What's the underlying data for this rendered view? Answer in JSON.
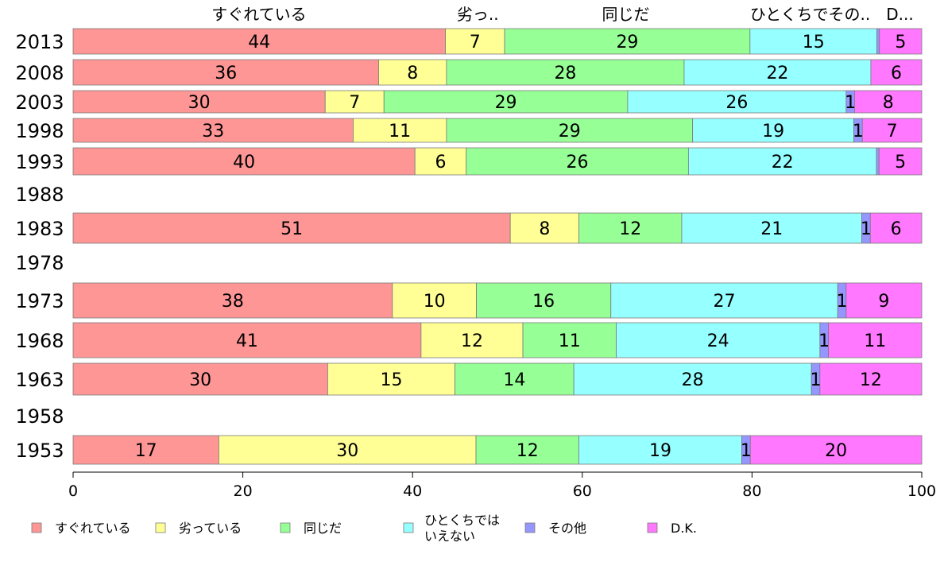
{
  "chart_data": {
    "type": "bar",
    "orientation": "horizontal",
    "stacked": true,
    "x_ticks": [
      "0",
      "20",
      "40",
      "60",
      "80",
      "100"
    ],
    "xlim": [
      0,
      100
    ],
    "top_labels": [
      "すぐれている",
      "劣っ..",
      "同じだ",
      "ひとくちでその..",
      "D..."
    ],
    "legend_position": "bottom",
    "series": [
      {
        "name": "すぐれている",
        "color": "#ff9696"
      },
      {
        "name": "劣っている",
        "color": "#ffff96"
      },
      {
        "name": "同じだ",
        "color": "#96ff96"
      },
      {
        "name": "ひとくちでは いえない",
        "color": "#96ffff"
      },
      {
        "name": "その他",
        "color": "#9696ff"
      },
      {
        "name": "D.K.",
        "color": "#ff78ff"
      }
    ],
    "rows": [
      {
        "year": "2013",
        "values": [
          44,
          7,
          29,
          15,
          0.3,
          5
        ],
        "labels": [
          "44",
          "7",
          "29",
          "15",
          "",
          "5"
        ]
      },
      {
        "year": "2008",
        "values": [
          36,
          8,
          28,
          22,
          0,
          6
        ],
        "labels": [
          "36",
          "8",
          "28",
          "22",
          "",
          "6"
        ]
      },
      {
        "year": "2003",
        "values": [
          30,
          7,
          29,
          26,
          1,
          8
        ],
        "labels": [
          "30",
          "7",
          "29",
          "26",
          "1",
          "8"
        ]
      },
      {
        "year": "1998",
        "values": [
          33,
          11,
          29,
          19,
          1,
          7
        ],
        "labels": [
          "33",
          "11",
          "29",
          "19",
          "1",
          "7"
        ]
      },
      {
        "year": "1993",
        "values": [
          40,
          6,
          26,
          22,
          0.3,
          5
        ],
        "labels": [
          "40",
          "6",
          "26",
          "22",
          "",
          "5"
        ]
      },
      {
        "year": "1988",
        "values": [],
        "labels": []
      },
      {
        "year": "1983",
        "values": [
          51,
          8,
          12,
          21,
          1,
          6
        ],
        "labels": [
          "51",
          "8",
          "12",
          "21",
          "1",
          "6"
        ]
      },
      {
        "year": "1978",
        "values": [],
        "labels": []
      },
      {
        "year": "1973",
        "values": [
          38,
          10,
          16,
          27,
          1,
          9
        ],
        "labels": [
          "38",
          "10",
          "16",
          "27",
          "1",
          "9"
        ]
      },
      {
        "year": "1968",
        "values": [
          41,
          12,
          11,
          24,
          1,
          11
        ],
        "labels": [
          "41",
          "12",
          "11",
          "24",
          "1",
          "11"
        ]
      },
      {
        "year": "1963",
        "values": [
          30,
          15,
          14,
          28,
          1,
          12
        ],
        "labels": [
          "30",
          "15",
          "14",
          "28",
          "1",
          "12"
        ]
      },
      {
        "year": "1958",
        "values": [],
        "labels": []
      },
      {
        "year": "1953",
        "values": [
          17,
          30,
          12,
          19,
          1,
          20
        ],
        "labels": [
          "17",
          "30",
          "12",
          "19",
          "1",
          "20"
        ]
      }
    ]
  }
}
